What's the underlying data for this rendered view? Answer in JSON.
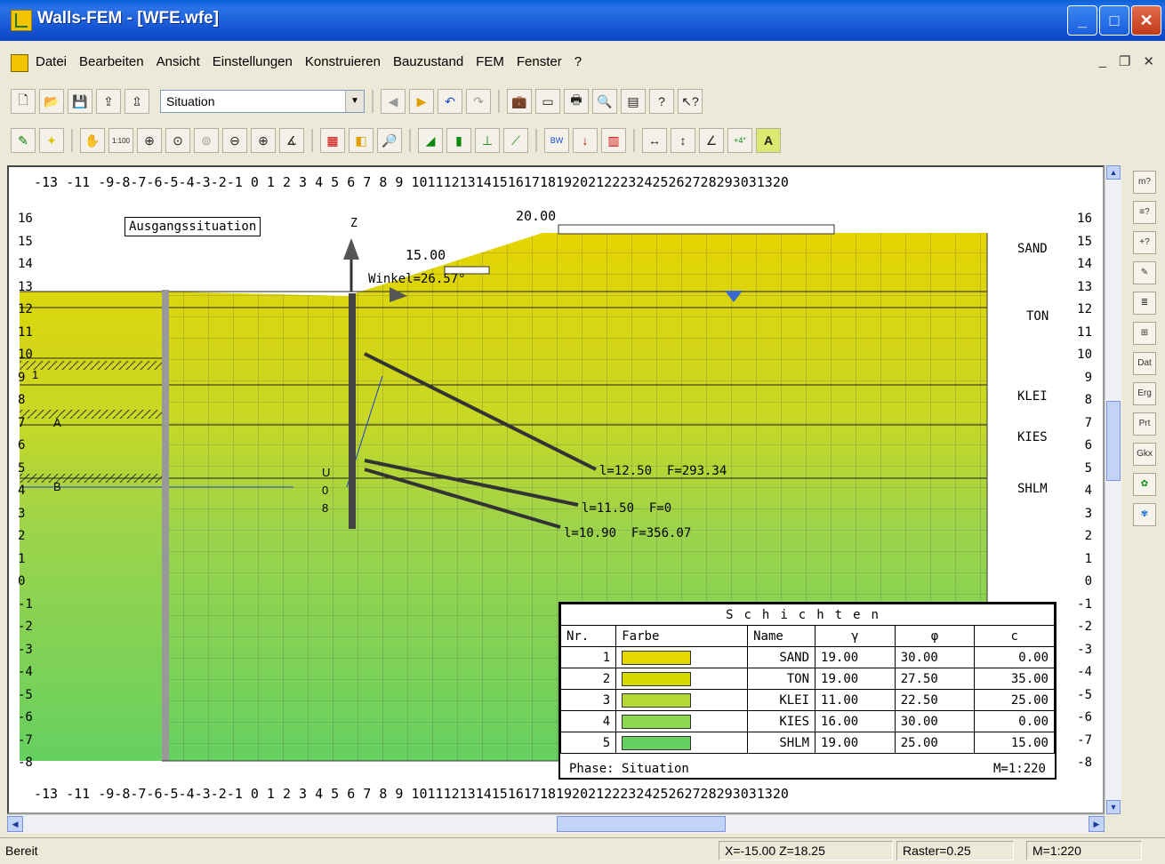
{
  "window": {
    "title": "Walls-FEM - [WFE.wfe]"
  },
  "menu": [
    "Datei",
    "Bearbeiten",
    "Ansicht",
    "Einstellungen",
    "Konstruieren",
    "Bauzustand",
    "FEM",
    "Fenster",
    "?"
  ],
  "toolbar": {
    "combo_value": "Situation"
  },
  "ruler": {
    "top": "-13 -11 -9-8-7-6-5-4-3-2-1 0 1 2 3 4 5 6 7 8 9 10111213141516171819202122232425262728293031320",
    "bottom": "-13 -11 -9-8-7-6-5-4-3-2-1 0 1 2 3 4 5 6 7 8 9 10111213141516171819202122232425262728293031320",
    "left": [
      "16",
      "15",
      "14",
      "13",
      "12",
      "11",
      "10",
      "9",
      "8",
      "7",
      "6",
      "5",
      "4",
      "3",
      "2",
      "1",
      "0",
      "-1",
      "-2",
      "-3",
      "-4",
      "-5",
      "-6",
      "-7",
      "-8"
    ],
    "right": [
      "16",
      "15",
      "14",
      "13",
      "12",
      "11",
      "10",
      "9",
      "8",
      "7",
      "6",
      "5",
      "4",
      "3",
      "2",
      "1",
      "0",
      "-1",
      "-2",
      "-3",
      "-4",
      "-5",
      "-6",
      "-7",
      "-8"
    ]
  },
  "drawing": {
    "phase_label": "Ausgangssituation",
    "z_axis": "Z",
    "load_20": "20.00",
    "load_15": "15.00",
    "angle": "Winkel=26.57°",
    "anchors": [
      "l=12.50  F=293.34",
      "l=11.50  F=0",
      "l=10.90  F=356.07"
    ],
    "layer_labels": [
      "SAND",
      "TON",
      "KLEI",
      "KIES",
      "SHLM"
    ],
    "left_markers": [
      "1",
      "A",
      "B"
    ],
    "wall_labels": [
      "U",
      "0",
      "8"
    ]
  },
  "legend": {
    "title": "Schichten",
    "headers": [
      "Nr.",
      "Farbe",
      "Name",
      "γ",
      "φ",
      "c"
    ],
    "rows": [
      {
        "nr": "1",
        "name": "SAND",
        "gamma": "19.00",
        "phi": "30.00",
        "c": "0.00",
        "color": "#e5d800"
      },
      {
        "nr": "2",
        "name": "TON",
        "gamma": "19.00",
        "phi": "27.50",
        "c": "35.00",
        "color": "#d6d800"
      },
      {
        "nr": "3",
        "name": "KLEI",
        "gamma": "11.00",
        "phi": "22.50",
        "c": "25.00",
        "color": "#b6d836"
      },
      {
        "nr": "4",
        "name": "KIES",
        "gamma": "16.00",
        "phi": "30.00",
        "c": "0.00",
        "color": "#8ed850"
      },
      {
        "nr": "5",
        "name": "SHLM",
        "gamma": "19.00",
        "phi": "25.00",
        "c": "15.00",
        "color": "#66d060"
      }
    ],
    "phase": "Phase: Situation",
    "scale": "M=1:220"
  },
  "status": {
    "ready": "Bereit",
    "coords": "X=-15.00 Z=18.25",
    "raster": "Raster=0.25",
    "scale": "M=1:220"
  }
}
